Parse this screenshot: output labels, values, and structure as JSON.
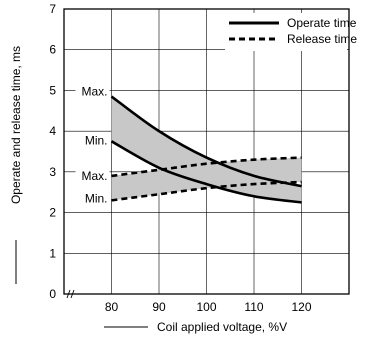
{
  "chart_data": {
    "type": "line",
    "xlabel": "Coil applied voltage, %V",
    "ylabel": "Operate and release time, ms",
    "x_ticks": [
      "80",
      "90",
      "100",
      "110",
      "120"
    ],
    "y_ticks": [
      "0",
      "1",
      "2",
      "3",
      "4",
      "5",
      "6",
      "7"
    ],
    "xlim": [
      70,
      130
    ],
    "ylim": [
      0,
      7
    ],
    "grid": true,
    "legend_position": "top-right",
    "x": [
      80,
      90,
      100,
      110,
      120
    ],
    "series": [
      {
        "name": "Operate time",
        "bound": "Max.",
        "values": [
          4.85,
          4.0,
          3.35,
          2.9,
          2.65
        ]
      },
      {
        "name": "Operate time",
        "bound": "Min.",
        "values": [
          3.75,
          3.1,
          2.7,
          2.4,
          2.25
        ]
      },
      {
        "name": "Release time",
        "bound": "Max.",
        "values": [
          2.9,
          3.05,
          3.2,
          3.3,
          3.35
        ]
      },
      {
        "name": "Release time",
        "bound": "Min.",
        "values": [
          2.3,
          2.45,
          2.6,
          2.7,
          2.75
        ]
      }
    ],
    "legend": [
      {
        "label": "Operate time",
        "style": "solid"
      },
      {
        "label": "Release time",
        "style": "dashed"
      }
    ],
    "annotations": {
      "operate_max": "Max.",
      "operate_min": "Min.",
      "release_max": "Max.",
      "release_min": "Min."
    },
    "colors": {
      "line": "#000000",
      "band": "#c8c8c8",
      "grid": "#000000"
    }
  }
}
